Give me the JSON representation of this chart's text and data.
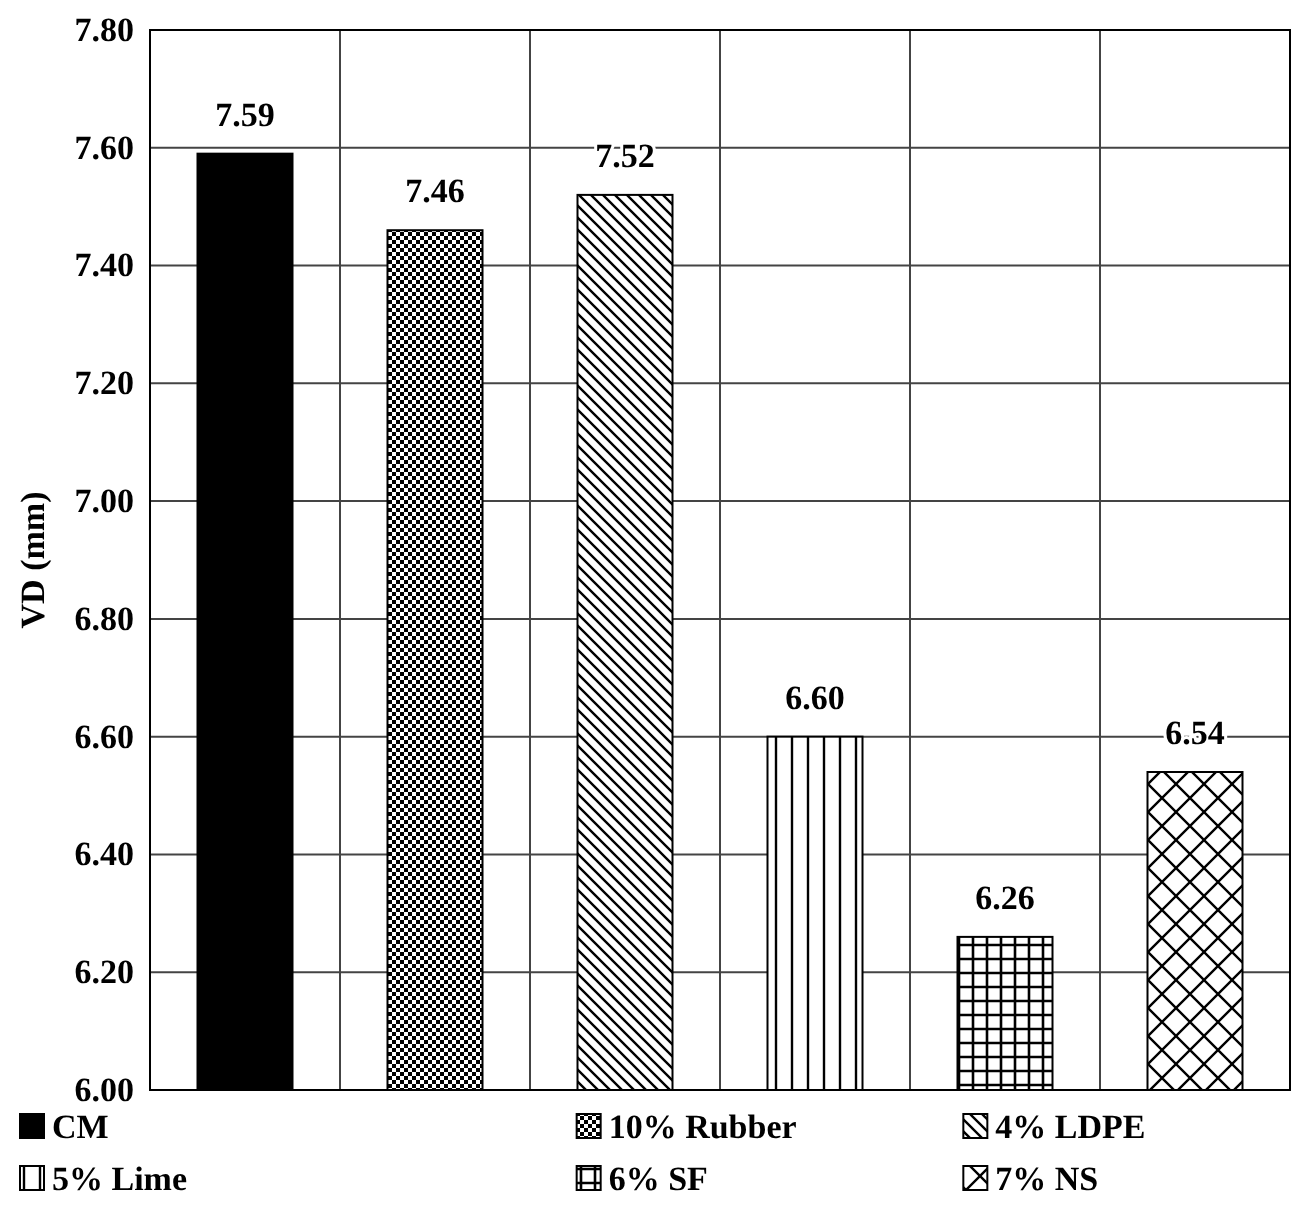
{
  "chart_data": {
    "type": "bar",
    "ylabel": "VD (mm)",
    "categories": [
      null,
      null,
      null,
      null,
      null,
      null
    ],
    "series": [
      {
        "name": "CM",
        "color": "#000000",
        "values": [
          7.59,
          null,
          null,
          null,
          null,
          null
        ]
      },
      {
        "name": "10% Rubber",
        "color": "#000000",
        "values": [
          null,
          7.46,
          null,
          null,
          null,
          null
        ]
      },
      {
        "name": "4% LDPE",
        "color": "#000000",
        "values": [
          null,
          null,
          7.52,
          null,
          null,
          null
        ]
      },
      {
        "name": "5% Lime",
        "color": "#000000",
        "values": [
          null,
          null,
          null,
          6.6,
          null,
          null
        ]
      },
      {
        "name": "6% SF",
        "color": "#000000",
        "values": [
          null,
          null,
          null,
          null,
          6.26,
          null
        ]
      },
      {
        "name": "7% NS",
        "color": "#000000",
        "values": [
          null,
          null,
          null,
          null,
          null,
          6.54
        ]
      }
    ],
    "ylim": [
      6.0,
      7.8
    ],
    "yticks": [
      {
        "value": 6.0,
        "label": "6.00"
      },
      {
        "value": 6.2,
        "label": "6.20"
      },
      {
        "value": 6.4,
        "label": "6.40"
      },
      {
        "value": 6.6,
        "label": "6.60"
      },
      {
        "value": 6.8,
        "label": "6.80"
      },
      {
        "value": 7.0,
        "label": "7.00"
      },
      {
        "value": 7.2,
        "label": "7.20"
      },
      {
        "value": 7.4,
        "label": "7.40"
      },
      {
        "value": 7.6,
        "label": "7.60"
      },
      {
        "value": 7.8,
        "label": "7.80"
      }
    ],
    "value_labels": [
      [
        "7.59",
        null,
        null,
        null,
        null,
        null
      ],
      [
        null,
        "7.46",
        null,
        null,
        null,
        null
      ],
      [
        null,
        null,
        "7.52",
        null,
        null,
        null
      ],
      [
        null,
        null,
        null,
        "6.60",
        null,
        null
      ],
      [
        null,
        null,
        null,
        null,
        "6.26",
        null
      ],
      [
        null,
        null,
        null,
        null,
        null,
        "6.54"
      ]
    ],
    "grid": true,
    "legend": "bottom"
  }
}
